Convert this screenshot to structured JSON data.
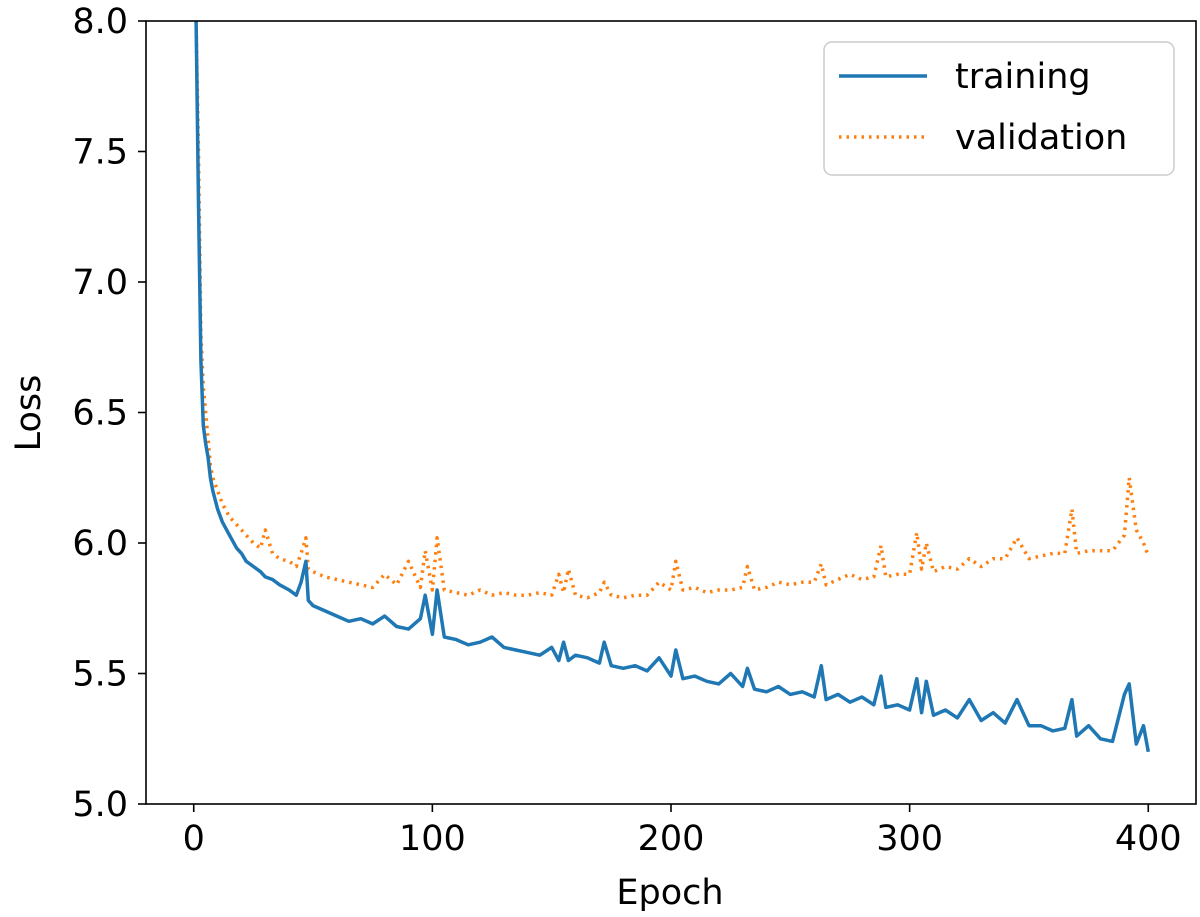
{
  "chart_data": {
    "type": "line",
    "title": "",
    "xlabel": "Epoch",
    "ylabel": "Loss",
    "xlim": [
      -20,
      420
    ],
    "ylim": [
      5.0,
      8.0
    ],
    "xticks": [
      0,
      100,
      200,
      300,
      400
    ],
    "xtick_labels": [
      "0",
      "100",
      "200",
      "300",
      "400"
    ],
    "yticks": [
      5.0,
      5.5,
      6.0,
      6.5,
      7.0,
      7.5,
      8.0
    ],
    "ytick_labels": [
      "5.0",
      "5.5",
      "6.0",
      "6.5",
      "7.0",
      "7.5",
      "8.0"
    ],
    "grid": false,
    "legend_position": "top-right",
    "series": [
      {
        "name": "training",
        "color": "#1f77b4",
        "style": "solid",
        "x": [
          1,
          2,
          3,
          4,
          5,
          6,
          7,
          8,
          10,
          12,
          15,
          18,
          20,
          22,
          25,
          28,
          30,
          33,
          36,
          40,
          43,
          45,
          47,
          48,
          50,
          55,
          60,
          65,
          70,
          75,
          80,
          85,
          90,
          95,
          97,
          100,
          102,
          105,
          110,
          115,
          120,
          125,
          130,
          135,
          140,
          145,
          150,
          153,
          155,
          157,
          160,
          165,
          170,
          172,
          175,
          180,
          185,
          190,
          195,
          200,
          202,
          205,
          210,
          215,
          220,
          225,
          230,
          232,
          235,
          240,
          245,
          250,
          255,
          260,
          263,
          265,
          270,
          275,
          280,
          285,
          288,
          290,
          295,
          300,
          303,
          305,
          307,
          310,
          315,
          320,
          325,
          330,
          335,
          340,
          345,
          350,
          355,
          360,
          365,
          368,
          370,
          375,
          380,
          385,
          390,
          392,
          395,
          398,
          400
        ],
        "y": [
          8.0,
          7.3,
          6.7,
          6.45,
          6.38,
          6.33,
          6.25,
          6.2,
          6.13,
          6.08,
          6.03,
          5.98,
          5.96,
          5.93,
          5.91,
          5.89,
          5.87,
          5.86,
          5.84,
          5.82,
          5.8,
          5.85,
          5.93,
          5.78,
          5.76,
          5.74,
          5.72,
          5.7,
          5.71,
          5.69,
          5.72,
          5.68,
          5.67,
          5.71,
          5.8,
          5.65,
          5.82,
          5.64,
          5.63,
          5.61,
          5.62,
          5.64,
          5.6,
          5.59,
          5.58,
          5.57,
          5.6,
          5.55,
          5.62,
          5.55,
          5.57,
          5.56,
          5.54,
          5.62,
          5.53,
          5.52,
          5.53,
          5.51,
          5.56,
          5.49,
          5.59,
          5.48,
          5.49,
          5.47,
          5.46,
          5.5,
          5.45,
          5.52,
          5.44,
          5.43,
          5.45,
          5.42,
          5.43,
          5.41,
          5.53,
          5.4,
          5.42,
          5.39,
          5.41,
          5.38,
          5.49,
          5.37,
          5.38,
          5.36,
          5.48,
          5.35,
          5.47,
          5.34,
          5.36,
          5.33,
          5.4,
          5.32,
          5.35,
          5.31,
          5.4,
          5.3,
          5.3,
          5.28,
          5.29,
          5.4,
          5.26,
          5.3,
          5.25,
          5.24,
          5.42,
          5.46,
          5.23,
          5.3,
          5.2
        ]
      },
      {
        "name": "validation",
        "color": "#ff7f0e",
        "style": "dotted",
        "x": [
          1,
          2,
          3,
          4,
          5,
          6,
          7,
          8,
          10,
          12,
          15,
          18,
          20,
          22,
          25,
          28,
          30,
          33,
          36,
          40,
          43,
          45,
          47,
          48,
          50,
          55,
          60,
          65,
          70,
          75,
          80,
          85,
          90,
          95,
          97,
          100,
          102,
          105,
          110,
          115,
          120,
          125,
          130,
          135,
          140,
          145,
          150,
          153,
          155,
          157,
          160,
          165,
          170,
          172,
          175,
          180,
          185,
          190,
          195,
          200,
          202,
          205,
          210,
          215,
          220,
          225,
          230,
          232,
          235,
          240,
          245,
          250,
          255,
          260,
          263,
          265,
          270,
          275,
          280,
          285,
          288,
          290,
          295,
          300,
          303,
          305,
          307,
          310,
          315,
          320,
          325,
          330,
          335,
          340,
          345,
          350,
          355,
          360,
          365,
          368,
          370,
          375,
          380,
          385,
          390,
          392,
          395,
          398,
          400
        ],
        "y": [
          8.0,
          7.5,
          6.8,
          6.6,
          6.5,
          6.4,
          6.3,
          6.25,
          6.2,
          6.15,
          6.1,
          6.07,
          6.05,
          6.03,
          6.0,
          5.98,
          6.05,
          5.96,
          5.94,
          5.93,
          5.91,
          5.96,
          6.02,
          5.9,
          5.89,
          5.87,
          5.86,
          5.85,
          5.84,
          5.83,
          5.88,
          5.84,
          5.93,
          5.83,
          5.97,
          5.82,
          6.02,
          5.82,
          5.81,
          5.8,
          5.82,
          5.8,
          5.81,
          5.8,
          5.8,
          5.81,
          5.8,
          5.88,
          5.81,
          5.9,
          5.8,
          5.79,
          5.81,
          5.85,
          5.8,
          5.79,
          5.8,
          5.8,
          5.85,
          5.82,
          5.93,
          5.82,
          5.83,
          5.81,
          5.82,
          5.82,
          5.83,
          5.91,
          5.82,
          5.83,
          5.85,
          5.84,
          5.85,
          5.85,
          5.92,
          5.84,
          5.86,
          5.88,
          5.86,
          5.87,
          5.99,
          5.87,
          5.88,
          5.88,
          6.04,
          5.9,
          6.0,
          5.89,
          5.91,
          5.9,
          5.94,
          5.91,
          5.94,
          5.94,
          6.02,
          5.94,
          5.95,
          5.96,
          5.96,
          6.13,
          5.96,
          5.97,
          5.97,
          5.97,
          6.03,
          6.25,
          6.05,
          6.0,
          5.95
        ]
      }
    ]
  }
}
